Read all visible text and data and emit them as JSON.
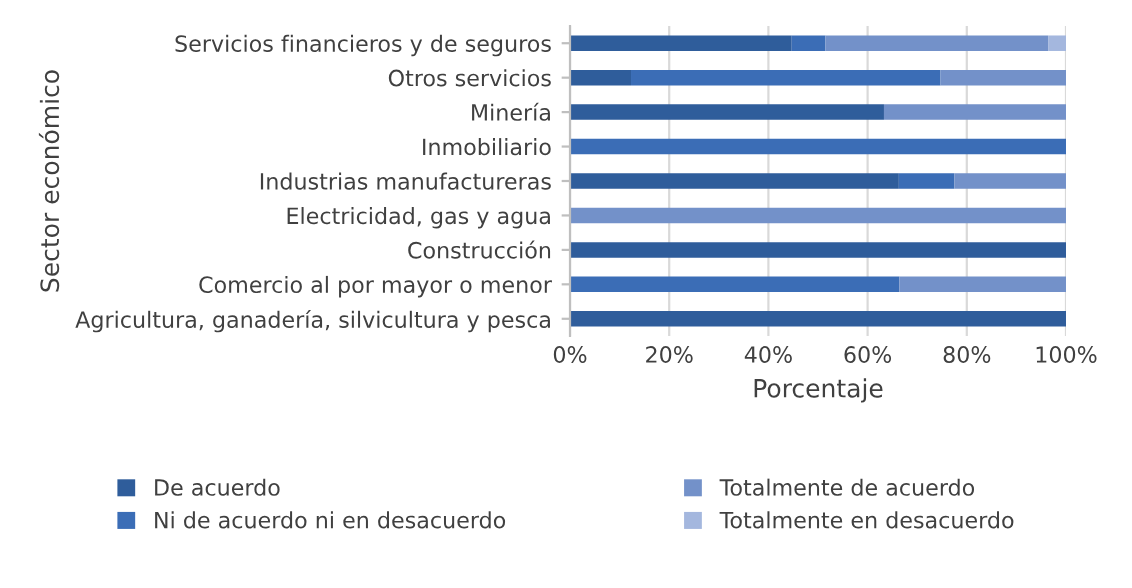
{
  "chart_data": {
    "type": "bar",
    "orientation": "horizontal",
    "stacked": true,
    "xlabel": "Porcentaje",
    "ylabel": "Sector económico",
    "categories": [
      "Servicios financieros y de seguros",
      "Otros servicios",
      "Minería",
      "Inmobiliario",
      "Industrias manufactureras",
      "Electricidad, gas y agua",
      "Construcción",
      "Comercio al por mayor o menor",
      "Agricultura, ganadería, silvicultura y pesca"
    ],
    "series": [
      {
        "name": "De acuerdo",
        "color": "#2f5d9b",
        "values": [
          44.7,
          12.3,
          63.3,
          0,
          66.3,
          0,
          100,
          0,
          100
        ]
      },
      {
        "name": "Ni de acuerdo ni en desacuerdo",
        "color": "#3b6db6",
        "values": [
          6.8,
          62.4,
          0,
          100,
          11.2,
          0,
          0,
          66.4,
          0
        ]
      },
      {
        "name": "Totalmente de acuerdo",
        "color": "#7391c9",
        "values": [
          44.9,
          25.3,
          36.7,
          0,
          22.5,
          100,
          0,
          33.6,
          0
        ]
      },
      {
        "name": "Totalmente en desacuerdo",
        "color": "#a4b7de",
        "values": [
          3.6,
          0,
          0,
          0,
          0,
          0,
          0,
          0,
          0
        ]
      }
    ],
    "xlim": [
      0,
      100
    ],
    "xticks": [
      {
        "value": 0,
        "label": "0%"
      },
      {
        "value": 20,
        "label": "20%"
      },
      {
        "value": 40,
        "label": "40%"
      },
      {
        "value": 60,
        "label": "60%"
      },
      {
        "value": 80,
        "label": "80%"
      },
      {
        "value": 100,
        "label": "100%"
      }
    ],
    "grid": "x",
    "legend": "bottom"
  }
}
